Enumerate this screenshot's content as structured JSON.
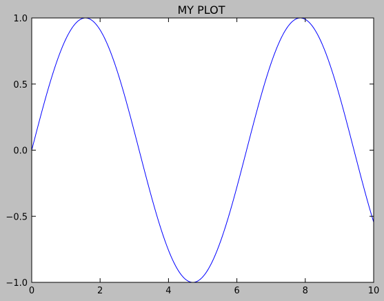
{
  "chart_data": {
    "type": "line",
    "title": "MY PLOT",
    "xlabel": "",
    "ylabel": "",
    "xlim": [
      0,
      10
    ],
    "ylim": [
      -1.0,
      1.0
    ],
    "x_ticks": [
      0,
      2,
      4,
      6,
      8,
      10
    ],
    "x_tick_labels": [
      "0",
      "2",
      "4",
      "6",
      "8",
      "10"
    ],
    "y_ticks": [
      -1.0,
      -0.5,
      0.0,
      0.5,
      1.0
    ],
    "y_tick_labels": [
      "−1.0",
      "−0.5",
      "0.0",
      "0.5",
      "1.0"
    ],
    "grid": false,
    "legend": "none",
    "series": [
      {
        "color": "#0000ff",
        "function": "sin(x)",
        "x": [
          0,
          0.5,
          1,
          1.5,
          1.5708,
          2,
          2.5,
          3,
          3.1416,
          3.5,
          4,
          4.5,
          4.7124,
          5,
          5.5,
          6,
          6.2832,
          6.5,
          7,
          7.5,
          7.854,
          8,
          8.5,
          9,
          9.5,
          10
        ],
        "y": [
          0,
          0.479,
          0.841,
          0.997,
          1.0,
          0.909,
          0.598,
          0.141,
          0.0,
          -0.351,
          -0.757,
          -0.978,
          -1.0,
          -0.959,
          -0.706,
          -0.279,
          0.0,
          0.215,
          0.657,
          0.938,
          1.0,
          0.989,
          0.798,
          0.412,
          -0.075,
          -0.544
        ]
      }
    ],
    "colors": {
      "figure_background": "#bfbfbf",
      "axes_background": "#ffffff",
      "line": "#0000ff"
    }
  }
}
